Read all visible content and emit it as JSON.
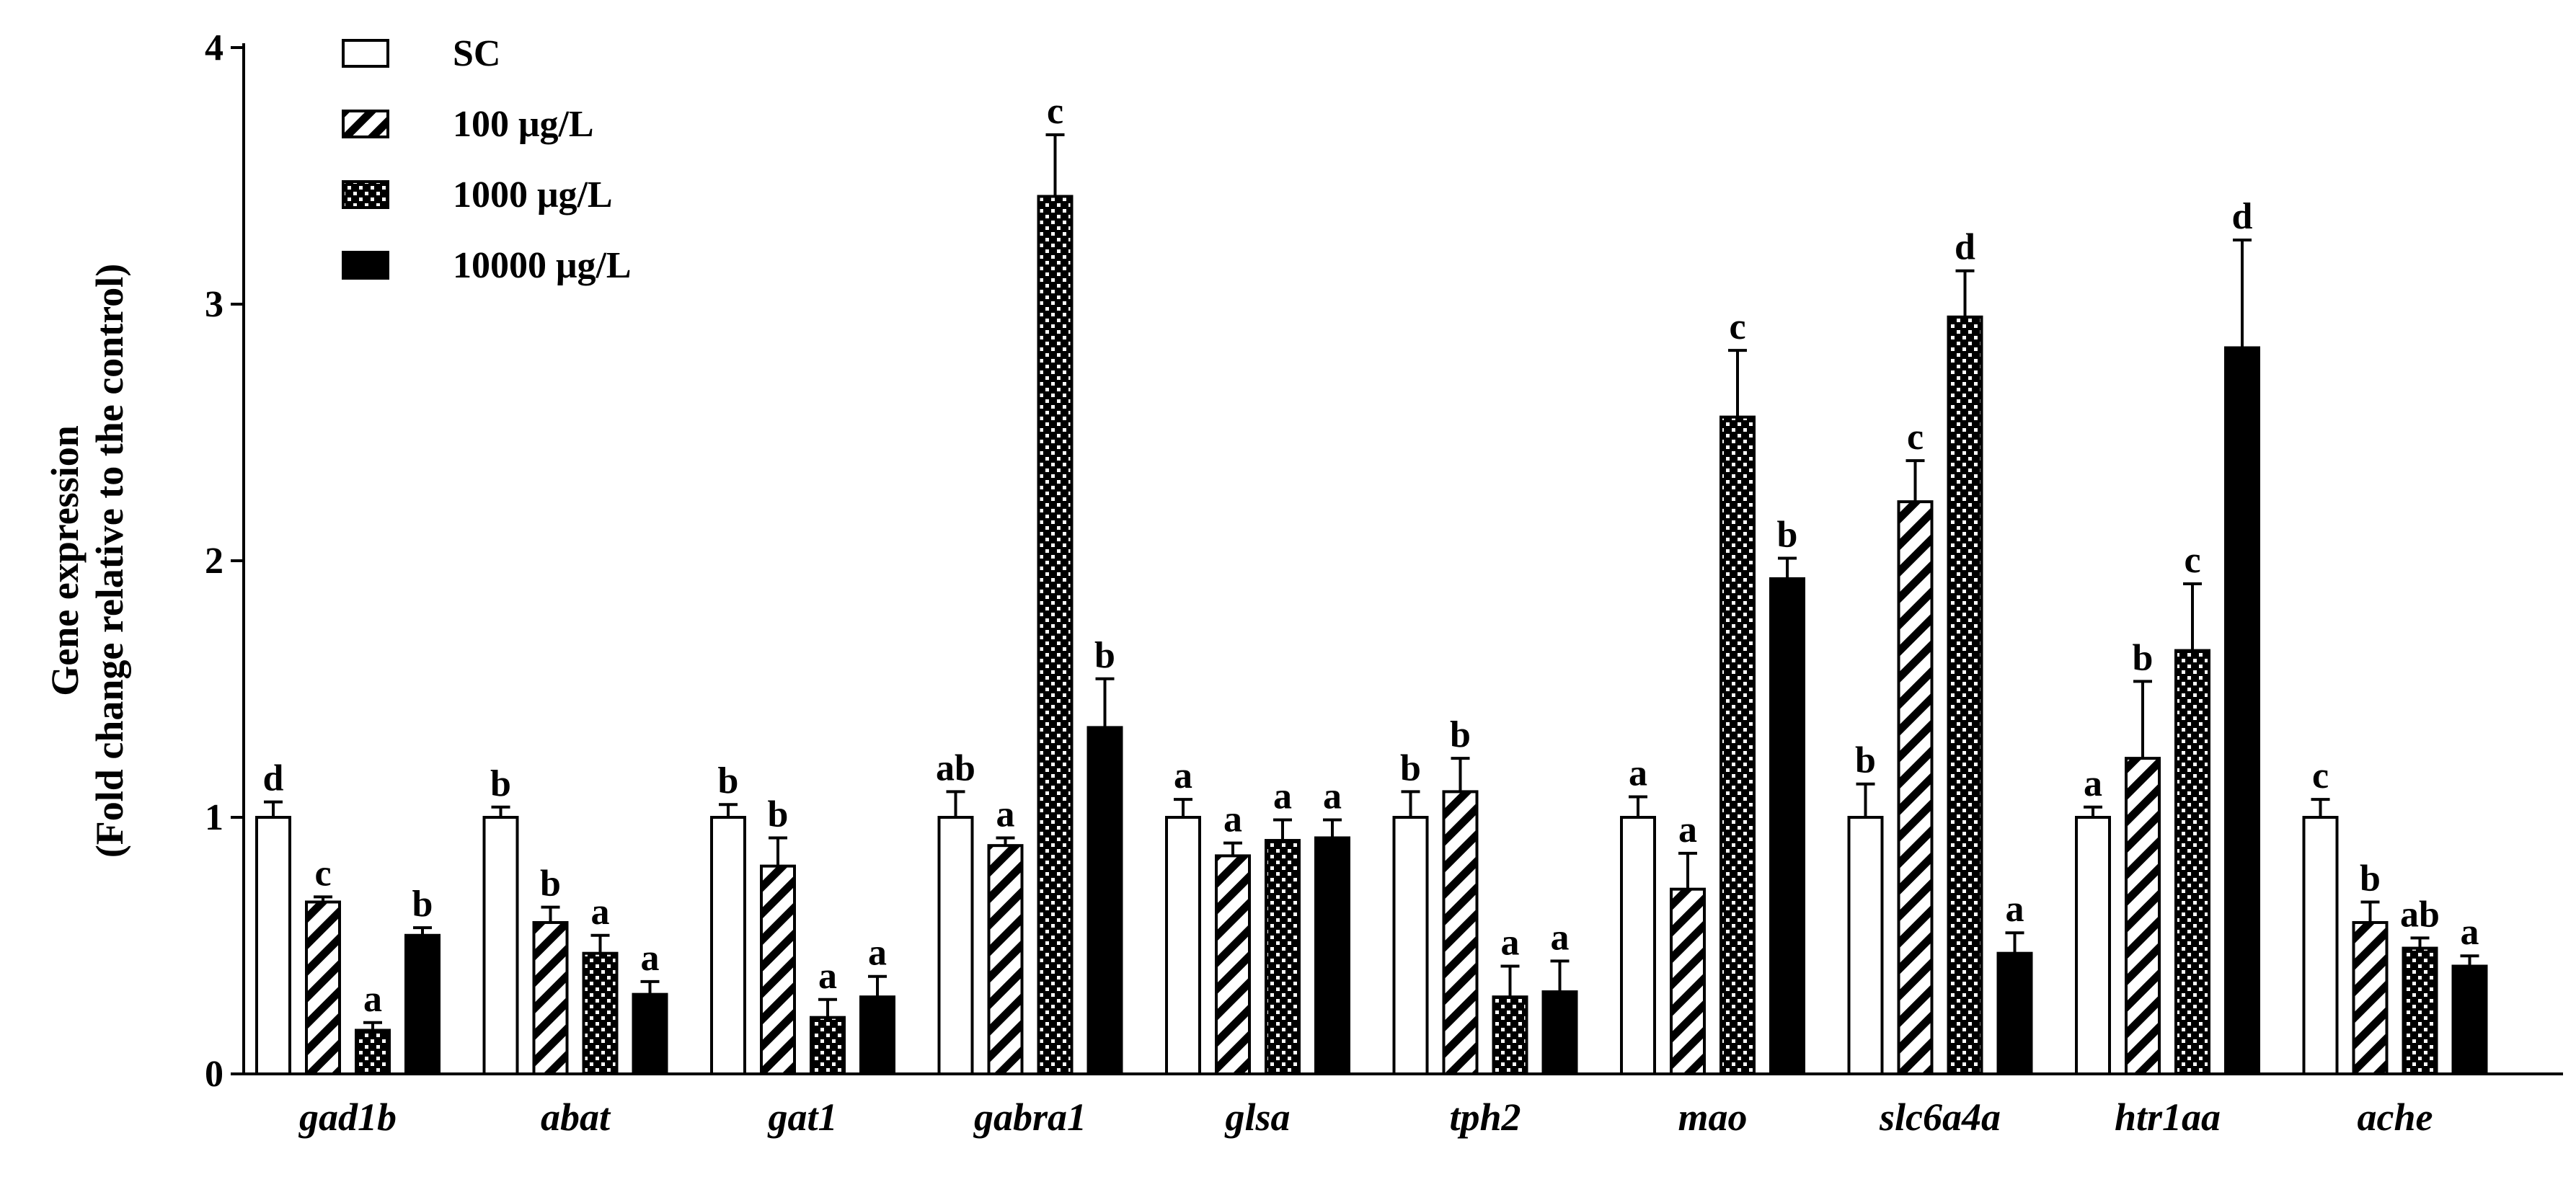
{
  "chart_data": {
    "type": "bar",
    "ylabel": [
      "Gene expression",
      "(Fold change relative to the control)"
    ],
    "ylim": [
      0,
      4
    ],
    "yticks": [
      0,
      1,
      2,
      3,
      4
    ],
    "grid": false,
    "legend_position": "top-left",
    "categories": [
      "gad1b",
      "abat",
      "gat1",
      "gabra1",
      "glsa",
      "tph2",
      "mao",
      "slc6a4a",
      "htr1aa",
      "ache"
    ],
    "series": [
      {
        "name": "SC",
        "pattern": "open",
        "values": [
          1.0,
          1.0,
          1.0,
          1.0,
          1.0,
          1.0,
          1.0,
          1.0,
          1.0,
          1.0
        ],
        "errors": [
          0.06,
          0.04,
          0.05,
          0.1,
          0.07,
          0.1,
          0.08,
          0.13,
          0.04,
          0.07
        ],
        "letters": [
          "d",
          "b",
          "b",
          "ab",
          "a",
          "b",
          "a",
          "b",
          "a",
          "c"
        ]
      },
      {
        "name": "100 μg/L",
        "pattern": "hatched",
        "values": [
          0.67,
          0.59,
          0.81,
          0.89,
          0.85,
          1.1,
          0.72,
          2.23,
          1.23,
          0.59
        ],
        "errors": [
          0.02,
          0.06,
          0.11,
          0.03,
          0.05,
          0.13,
          0.14,
          0.16,
          0.3,
          0.08
        ],
        "letters": [
          "c",
          "b",
          "b",
          "a",
          "a",
          "b",
          "a",
          "c",
          "b",
          "b"
        ]
      },
      {
        "name": "1000 μg/L",
        "pattern": "checkered",
        "values": [
          0.17,
          0.47,
          0.22,
          3.42,
          0.91,
          0.3,
          2.56,
          2.95,
          1.65,
          0.49
        ],
        "errors": [
          0.03,
          0.07,
          0.07,
          0.24,
          0.08,
          0.12,
          0.26,
          0.18,
          0.26,
          0.04
        ],
        "letters": [
          "a",
          "a",
          "a",
          "c",
          "a",
          "a",
          "c",
          "d",
          "c",
          "ab"
        ]
      },
      {
        "name": "10000 μg/L",
        "pattern": "solid",
        "values": [
          0.54,
          0.31,
          0.3,
          1.35,
          0.92,
          0.32,
          1.93,
          0.47,
          2.83,
          0.42
        ],
        "errors": [
          0.03,
          0.05,
          0.08,
          0.19,
          0.07,
          0.12,
          0.08,
          0.08,
          0.42,
          0.04
        ],
        "letters": [
          "b",
          "a",
          "a",
          "b",
          "a",
          "a",
          "b",
          "a",
          "d",
          "a"
        ]
      }
    ]
  }
}
